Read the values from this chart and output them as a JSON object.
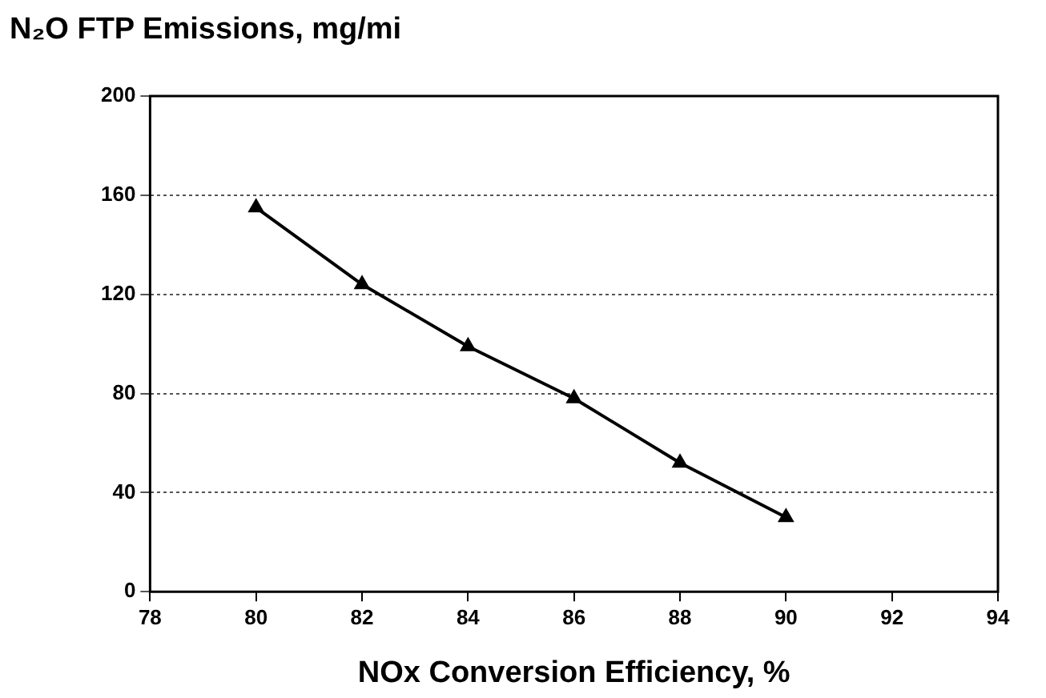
{
  "chart_data": {
    "type": "line",
    "title": "N₂O FTP Emissions, mg/mi",
    "xlabel": "NOx Conversion Efficiency, %",
    "x": [
      80,
      82,
      84,
      86,
      88,
      90
    ],
    "series": [
      {
        "color": "#000000",
        "values": [
          155,
          124,
          99,
          78,
          52,
          30
        ]
      }
    ],
    "xlim": [
      78,
      94
    ],
    "xticks": [
      78,
      80,
      82,
      84,
      86,
      88,
      90,
      92,
      94
    ],
    "ylim": [
      0,
      200
    ],
    "yticks": [
      0,
      40,
      80,
      120,
      160,
      200
    ],
    "grid": "y",
    "marker": "triangle",
    "line_style": "solid",
    "legend": false
  }
}
